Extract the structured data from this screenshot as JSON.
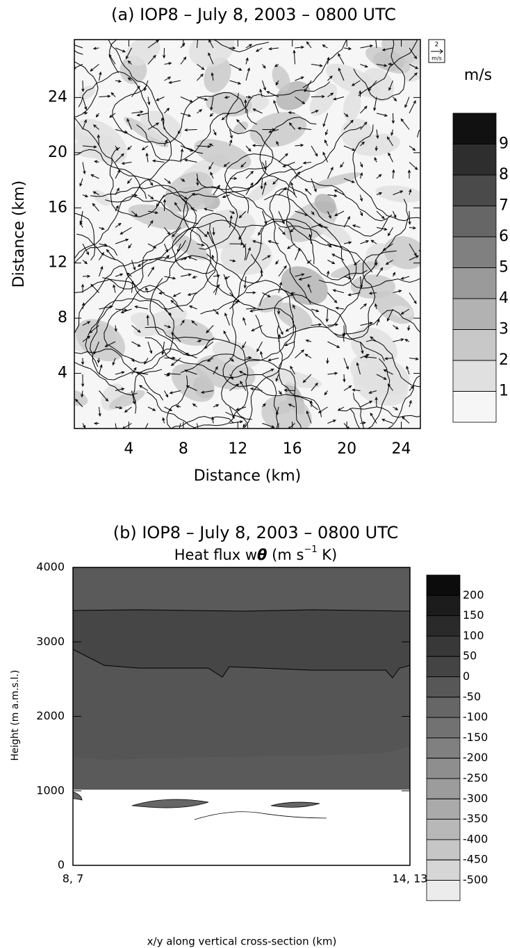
{
  "chart_data": [
    {
      "type": "contour-vector",
      "title": "(a) IOP8 – July 8, 2003 – 0800 UTC",
      "xlabel": "Distance (km)",
      "ylabel": "Distance (km)",
      "xlim": [
        0,
        25.4
      ],
      "ylim": [
        0,
        28.2
      ],
      "xticks": [
        4,
        8,
        12,
        16,
        20,
        24
      ],
      "yticks": [
        4,
        8,
        12,
        16,
        20,
        24
      ],
      "vector_scale": {
        "value": 2,
        "unit": "m/s"
      },
      "colorbar_unit": "m/s",
      "colorbar_levels": [
        1,
        2,
        3,
        4,
        5,
        6,
        7,
        8,
        9
      ],
      "colorbar_colors": [
        "#f6f6f6",
        "#e0e0e0",
        "#c8c8c8",
        "#b2b2b2",
        "#9a9a9a",
        "#808080",
        "#666666",
        "#4a4a4a",
        "#2e2e2e",
        "#111111"
      ]
    },
    {
      "type": "contour-section",
      "title": "(b) IOP8 – July 8, 2003 – 0800 UTC",
      "subtitle_parts": [
        "Heat flux w",
        "θ",
        " (m s",
        "−1",
        " K)"
      ],
      "xlabel": "x/y along vertical cross-section (km)",
      "ylabel": "Height (m a.m.s.l.)",
      "xlim": [
        0,
        1
      ],
      "xticks": [
        {
          "value": 0,
          "label": "8, 7"
        },
        {
          "value": 1,
          "label": "14, 13"
        }
      ],
      "ylim": [
        0,
        4000
      ],
      "yticks": [
        0,
        1000,
        2000,
        3000,
        4000
      ],
      "colorbar_levels": [
        200,
        150,
        100,
        50,
        0,
        -50,
        -100,
        -150,
        -200,
        -250,
        -300,
        -350,
        -400,
        -450,
        -500
      ],
      "colorbar_colors": [
        "#0c0c0c",
        "#1c1c1c",
        "#2a2a2a",
        "#383838",
        "#444444",
        "#575757",
        "#666666",
        "#727272",
        "#808080",
        "#8e8e8e",
        "#9c9c9c",
        "#aaaaaa",
        "#b8b8b8",
        "#c6c6c6",
        "#d6d6d6",
        "#ececec"
      ]
    }
  ]
}
